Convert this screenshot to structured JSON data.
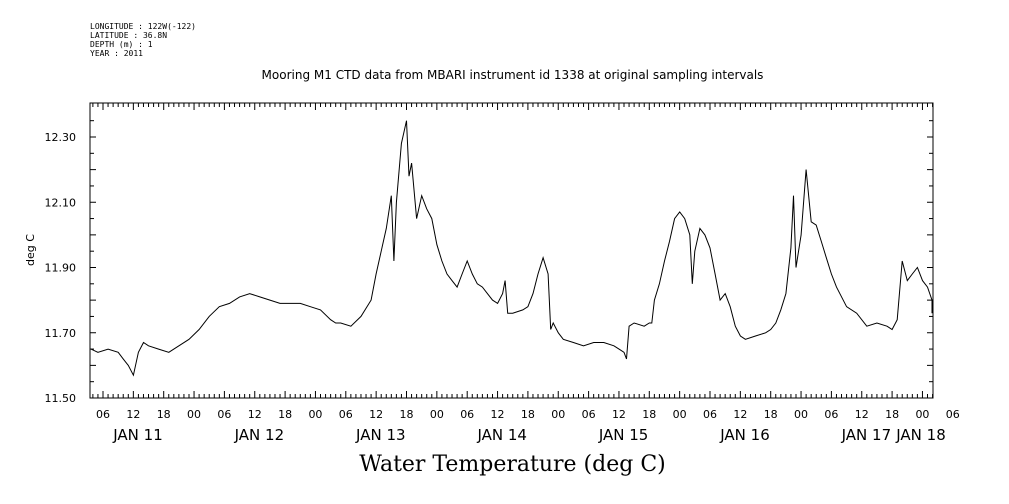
{
  "meta": {
    "longitude": "LONGITUDE : 122W(-122)",
    "latitude": "LATITUDE : 36.8N",
    "depth": "DEPTH (m) : 1",
    "year": "YEAR : 2011"
  },
  "chart_data": {
    "type": "line",
    "title": "Mooring M1 CTD data from MBARI instrument id 1338 at original sampling intervals",
    "xlabel": "Water Temperature (deg C)",
    "ylabel": "deg C",
    "ylim": [
      11.5,
      12.4
    ],
    "yticks": [
      "11.50",
      "11.70",
      "11.90",
      "12.10",
      "12.30"
    ],
    "xlim_hours": [
      0,
      174
    ],
    "hour_tick_labels": [
      "06",
      "12",
      "18",
      "00",
      "06",
      "12",
      "18",
      "00",
      "06",
      "12",
      "18",
      "00",
      "06",
      "12",
      "18",
      "00",
      "06",
      "12",
      "18",
      "00",
      "06",
      "12",
      "18",
      "00",
      "06",
      "12",
      "18",
      "00",
      "06"
    ],
    "day_labels": [
      "JAN 11",
      "JAN 12",
      "JAN 13",
      "JAN 14",
      "JAN 15",
      "JAN 16",
      "JAN 17",
      "JAN 18"
    ],
    "series": [
      {
        "values_hours_temp": [
          [
            0,
            11.65
          ],
          [
            2,
            11.64
          ],
          [
            4,
            11.65
          ],
          [
            6,
            11.64
          ],
          [
            7,
            11.62
          ],
          [
            8,
            11.6
          ],
          [
            9,
            11.57
          ],
          [
            10,
            11.64
          ],
          [
            11,
            11.67
          ],
          [
            12,
            11.66
          ],
          [
            14,
            11.65
          ],
          [
            16,
            11.64
          ],
          [
            18,
            11.66
          ],
          [
            20,
            11.68
          ],
          [
            22,
            11.71
          ],
          [
            24,
            11.75
          ],
          [
            26,
            11.78
          ],
          [
            28,
            11.79
          ],
          [
            30,
            11.81
          ],
          [
            32,
            11.82
          ],
          [
            34,
            11.81
          ],
          [
            36,
            11.8
          ],
          [
            38,
            11.79
          ],
          [
            40,
            11.79
          ],
          [
            42,
            11.79
          ],
          [
            44,
            11.78
          ],
          [
            46,
            11.77
          ],
          [
            48,
            11.74
          ],
          [
            49,
            11.73
          ],
          [
            50,
            11.73
          ],
          [
            52,
            11.72
          ],
          [
            54,
            11.75
          ],
          [
            56,
            11.8
          ],
          [
            57,
            11.88
          ],
          [
            58,
            11.95
          ],
          [
            59,
            12.02
          ],
          [
            60,
            12.12
          ],
          [
            60.5,
            11.92
          ],
          [
            61,
            12.1
          ],
          [
            62,
            12.28
          ],
          [
            63,
            12.35
          ],
          [
            63.5,
            12.18
          ],
          [
            64,
            12.22
          ],
          [
            65,
            12.05
          ],
          [
            66,
            12.12
          ],
          [
            67,
            12.08
          ],
          [
            68,
            12.05
          ],
          [
            69,
            11.97
          ],
          [
            70,
            11.92
          ],
          [
            71,
            11.88
          ],
          [
            72,
            11.86
          ],
          [
            73,
            11.84
          ],
          [
            74,
            11.88
          ],
          [
            75,
            11.92
          ],
          [
            76,
            11.88
          ],
          [
            77,
            11.85
          ],
          [
            78,
            11.84
          ],
          [
            79,
            11.82
          ],
          [
            80,
            11.8
          ],
          [
            81,
            11.79
          ],
          [
            82,
            11.82
          ],
          [
            82.5,
            11.86
          ],
          [
            83,
            11.76
          ],
          [
            84,
            11.76
          ],
          [
            86,
            11.77
          ],
          [
            87,
            11.78
          ],
          [
            88,
            11.82
          ],
          [
            89,
            11.88
          ],
          [
            90,
            11.93
          ],
          [
            91,
            11.88
          ],
          [
            91.5,
            11.71
          ],
          [
            92,
            11.73
          ],
          [
            93,
            11.7
          ],
          [
            94,
            11.68
          ],
          [
            96,
            11.67
          ],
          [
            98,
            11.66
          ],
          [
            100,
            11.67
          ],
          [
            102,
            11.67
          ],
          [
            104,
            11.66
          ],
          [
            105,
            11.65
          ],
          [
            106,
            11.64
          ],
          [
            106.5,
            11.62
          ],
          [
            107,
            11.72
          ],
          [
            108,
            11.73
          ],
          [
            110,
            11.72
          ],
          [
            111,
            11.73
          ],
          [
            111.5,
            11.73
          ],
          [
            112,
            11.8
          ],
          [
            113,
            11.85
          ],
          [
            114,
            11.92
          ],
          [
            115,
            11.98
          ],
          [
            116,
            12.05
          ],
          [
            117,
            12.07
          ],
          [
            118,
            12.05
          ],
          [
            119,
            12.0
          ],
          [
            119.5,
            11.85
          ],
          [
            120,
            11.95
          ],
          [
            121,
            12.02
          ],
          [
            122,
            12.0
          ],
          [
            123,
            11.96
          ],
          [
            124,
            11.88
          ],
          [
            125,
            11.8
          ],
          [
            126,
            11.82
          ],
          [
            127,
            11.78
          ],
          [
            128,
            11.72
          ],
          [
            129,
            11.69
          ],
          [
            130,
            11.68
          ],
          [
            132,
            11.69
          ],
          [
            134,
            11.7
          ],
          [
            135,
            11.71
          ],
          [
            136,
            11.73
          ],
          [
            137,
            11.77
          ],
          [
            138,
            11.82
          ],
          [
            139,
            11.96
          ],
          [
            139.5,
            12.12
          ],
          [
            140,
            11.9
          ],
          [
            141,
            12.0
          ],
          [
            142,
            12.2
          ],
          [
            143,
            12.04
          ],
          [
            144,
            12.03
          ],
          [
            145,
            11.98
          ],
          [
            146,
            11.93
          ],
          [
            147,
            11.88
          ],
          [
            148,
            11.84
          ],
          [
            150,
            11.78
          ],
          [
            152,
            11.76
          ],
          [
            154,
            11.72
          ],
          [
            156,
            11.73
          ],
          [
            158,
            11.72
          ],
          [
            159,
            11.71
          ],
          [
            160,
            11.74
          ],
          [
            161,
            11.92
          ],
          [
            162,
            11.86
          ],
          [
            163,
            11.88
          ],
          [
            164,
            11.9
          ],
          [
            165,
            11.86
          ],
          [
            166,
            11.84
          ],
          [
            168,
            11.8
          ],
          [
            170,
            11.78
          ],
          [
            172,
            11.77
          ],
          [
            174,
            11.76
          ]
        ]
      }
    ]
  }
}
